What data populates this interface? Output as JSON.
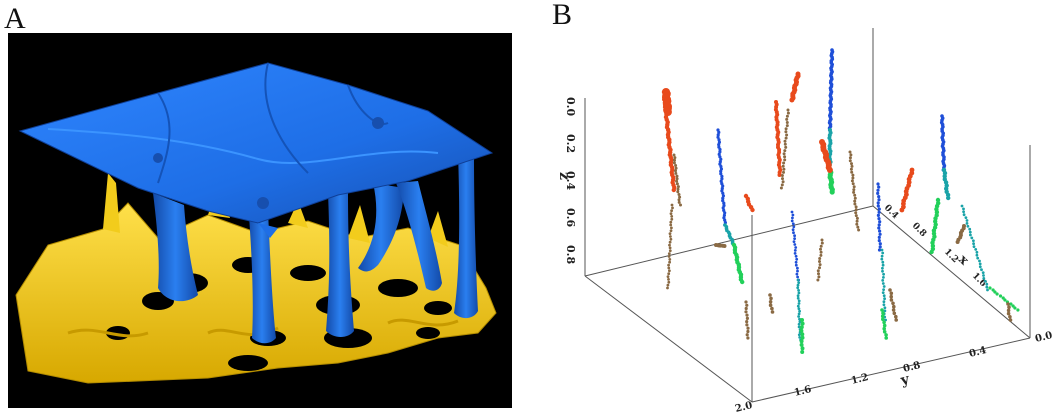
{
  "figure": {
    "panel_a_label": "A",
    "panel_b_label": "B"
  },
  "colors": {
    "surface_top": "#1e6ee6",
    "surface_bottom": "#f0c814",
    "background_a": "#000000",
    "track_red": "#e84a1c",
    "track_brown": "#8a6a44",
    "track_blue": "#1f4fd8",
    "track_teal": "#1aa3a8",
    "track_green": "#22d05a"
  },
  "chart_data": {
    "type": "scatter",
    "projection": "3d",
    "axes": {
      "z": {
        "label": "z",
        "ticks": [
          "0.0",
          "0.2",
          "0.4",
          "0.6",
          "0.8"
        ],
        "range": [
          0,
          0.9
        ]
      },
      "y": {
        "label": "y",
        "ticks": [
          "2.0",
          "1.6",
          "1.2",
          "0.8",
          "0.4",
          "0.0"
        ],
        "range": [
          0,
          2.0
        ]
      },
      "x": {
        "label": "x",
        "ticks": [
          "0.4",
          "0.8",
          "1.2",
          "1.6"
        ],
        "range": [
          0,
          2.0
        ]
      }
    },
    "grid": false,
    "legend": "none"
  }
}
